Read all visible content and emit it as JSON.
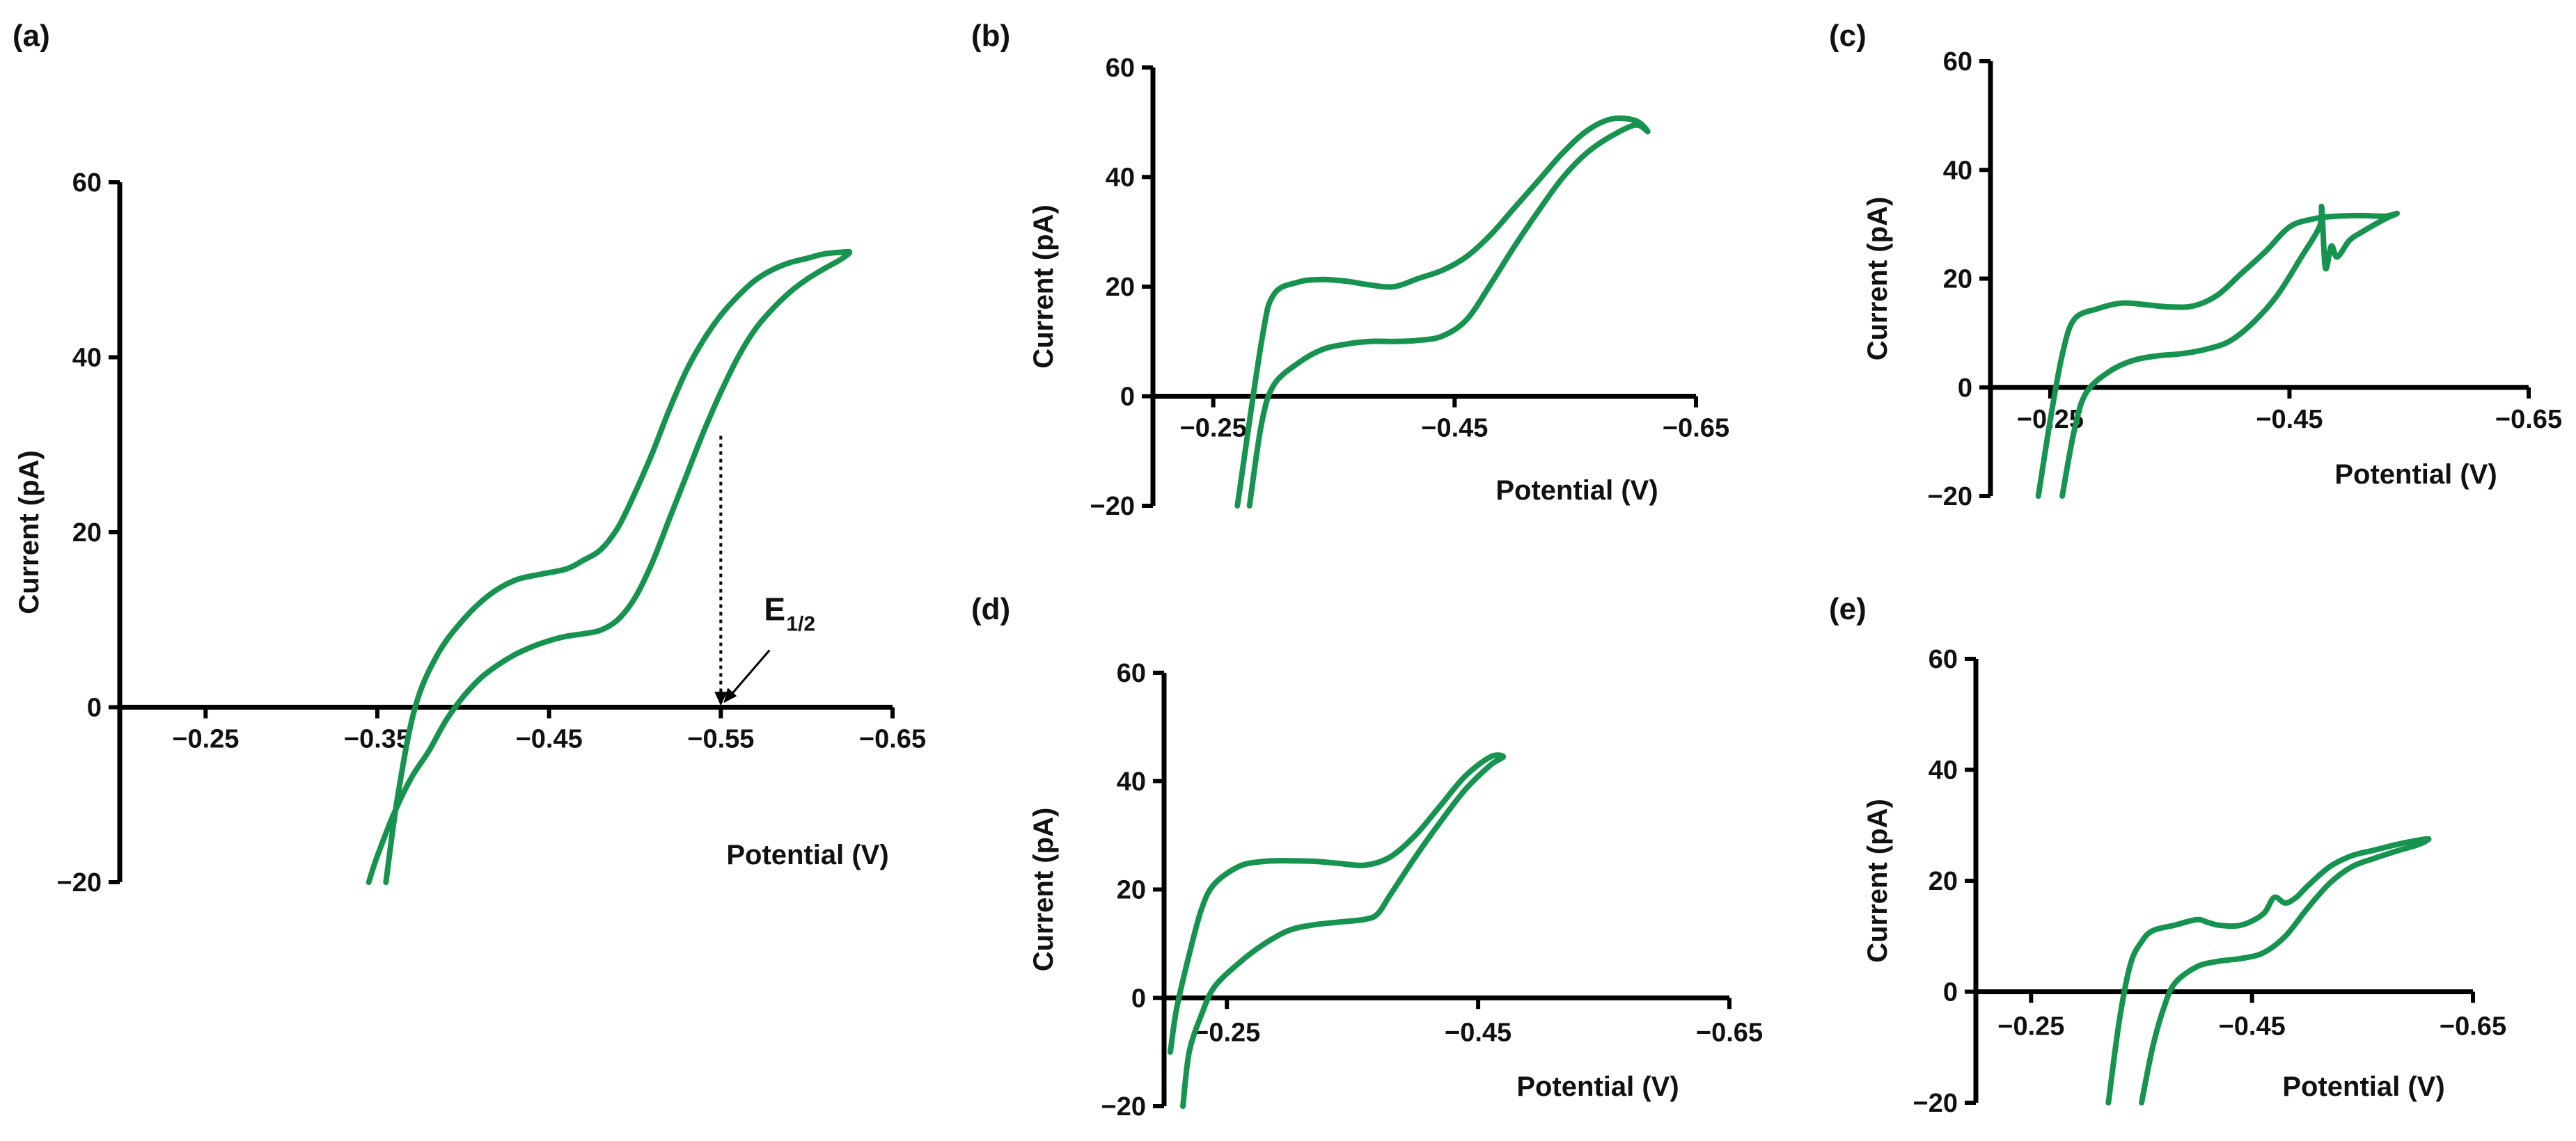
{
  "colors": {
    "curve": "#16944f",
    "axis": "#000000",
    "text": "#111111"
  },
  "chart_data": [
    {
      "type": "line",
      "panel": "(a)",
      "xlabel": "Potential (V)",
      "ylabel": "Current (pA)",
      "xlim": [
        -0.2,
        -0.65
      ],
      "ylim": [
        -20,
        60
      ],
      "xticks": [
        -0.25,
        -0.35,
        -0.45,
        -0.55,
        -0.65
      ],
      "xtick_labels": [
        "−0.25",
        "−0.35",
        "−0.45",
        "−0.55",
        "−0.65"
      ],
      "yticks": [
        -20,
        0,
        20,
        40,
        60
      ],
      "ytick_labels": [
        "−20",
        "0",
        "20",
        "40",
        "60"
      ],
      "annotation": {
        "main": "E",
        "sub": "1/2",
        "x": -0.55,
        "y_top": 31
      },
      "series": [
        {
          "name": "cyclic voltammogram",
          "x": [
            -0.355,
            -0.362,
            -0.372,
            -0.385,
            -0.4,
            -0.415,
            -0.43,
            -0.445,
            -0.46,
            -0.47,
            -0.48,
            -0.49,
            -0.5,
            -0.51,
            -0.52,
            -0.53,
            -0.54,
            -0.55,
            -0.56,
            -0.57,
            -0.58,
            -0.59,
            -0.6,
            -0.61,
            -0.62,
            -0.625,
            -0.62,
            -0.61,
            -0.6,
            -0.59,
            -0.58,
            -0.57,
            -0.56,
            -0.55,
            -0.54,
            -0.53,
            -0.52,
            -0.51,
            -0.5,
            -0.49,
            -0.48,
            -0.47,
            -0.46,
            -0.45,
            -0.44,
            -0.43,
            -0.42,
            -0.41,
            -0.4,
            -0.39,
            -0.38,
            -0.37,
            -0.36,
            -0.35,
            -0.345
          ],
          "y": [
            -20,
            -10,
            0,
            6,
            10,
            12.8,
            14.5,
            15.2,
            15.8,
            16.8,
            18,
            20.5,
            24.5,
            29,
            34,
            38.5,
            42,
            44.8,
            47,
            48.8,
            50,
            50.8,
            51.3,
            51.8,
            52,
            52,
            51.2,
            50.1,
            48.9,
            47.4,
            45.5,
            43.2,
            40,
            36,
            31.5,
            26.5,
            21.5,
            16.5,
            12.5,
            10,
            8.8,
            8.4,
            8.1,
            7.6,
            6.9,
            6,
            4.8,
            3.3,
            1.2,
            -1.5,
            -5,
            -8,
            -12,
            -17,
            -20
          ]
        }
      ]
    },
    {
      "type": "line",
      "panel": "(b)",
      "xlabel": "Potential (V)",
      "ylabel": "Current (pA)",
      "xlim": [
        -0.2,
        -0.65
      ],
      "ylim": [
        -20,
        60
      ],
      "xticks": [
        -0.25,
        -0.45,
        -0.65
      ],
      "xtick_labels": [
        "−0.25",
        "−0.45",
        "−0.65"
      ],
      "yticks": [
        -20,
        0,
        20,
        40,
        60
      ],
      "ytick_labels": [
        "−20",
        "0",
        "20",
        "40",
        "60"
      ],
      "series": [
        {
          "name": "cyclic voltammogram",
          "x": [
            -0.28,
            -0.29,
            -0.3,
            -0.32,
            -0.34,
            -0.36,
            -0.38,
            -0.4,
            -0.42,
            -0.44,
            -0.46,
            -0.48,
            -0.5,
            -0.52,
            -0.54,
            -0.56,
            -0.58,
            -0.6,
            -0.61,
            -0.6,
            -0.58,
            -0.56,
            -0.54,
            -0.52,
            -0.5,
            -0.48,
            -0.46,
            -0.44,
            -0.42,
            -0.4,
            -0.38,
            -0.36,
            -0.34,
            -0.32,
            -0.3,
            -0.29,
            -0.27
          ],
          "y": [
            -20,
            -5,
            2,
            6,
            8.5,
            9.5,
            10,
            10,
            10.2,
            11,
            14,
            20.5,
            27.5,
            34,
            40,
            44.5,
            47.5,
            49.5,
            48.3,
            50.3,
            50.6,
            48.5,
            44.5,
            39.5,
            34.5,
            29.5,
            25.5,
            23,
            21.5,
            20,
            20.3,
            21,
            21.3,
            20.8,
            18.5,
            10,
            -20
          ]
        }
      ]
    },
    {
      "type": "line",
      "panel": "(c)",
      "xlabel": "Potential (V)",
      "ylabel": "Current (pA)",
      "xlim": [
        -0.2,
        -0.65
      ],
      "ylim": [
        -20,
        60
      ],
      "xticks": [
        -0.25,
        -0.45,
        -0.65
      ],
      "xtick_labels": [
        "−0.25",
        "−0.45",
        "−0.65"
      ],
      "yticks": [
        -20,
        0,
        20,
        40,
        60
      ],
      "ytick_labels": [
        "−20",
        "0",
        "20",
        "40",
        "60"
      ],
      "series": [
        {
          "name": "cyclic voltammogram",
          "x": [
            -0.26,
            -0.27,
            -0.28,
            -0.3,
            -0.32,
            -0.34,
            -0.36,
            -0.38,
            -0.4,
            -0.42,
            -0.44,
            -0.46,
            -0.475,
            -0.477,
            -0.48,
            -0.485,
            -0.49,
            -0.5,
            -0.51,
            -0.53,
            -0.54,
            -0.53,
            -0.51,
            -0.49,
            -0.47,
            -0.45,
            -0.43,
            -0.41,
            -0.39,
            -0.37,
            -0.35,
            -0.33,
            -0.31,
            -0.29,
            -0.27,
            -0.26,
            -0.25,
            -0.24
          ],
          "y": [
            -20,
            -8,
            -1,
            3,
            5,
            5.8,
            6.2,
            7,
            8.5,
            12,
            17,
            24,
            29.5,
            33,
            22,
            26,
            24,
            27,
            28.5,
            31,
            32,
            31.5,
            31.6,
            31.5,
            31,
            29.5,
            25,
            21,
            17,
            15,
            14.8,
            15.2,
            15.5,
            14.5,
            12.5,
            6,
            -6,
            -20
          ]
        }
      ]
    },
    {
      "type": "line",
      "panel": "(d)",
      "xlabel": "Potential (V)",
      "ylabel": "Current (pA)",
      "xlim": [
        -0.2,
        -0.65
      ],
      "ylim": [
        -20,
        60
      ],
      "xticks": [
        -0.25,
        -0.45,
        -0.65
      ],
      "xtick_labels": [
        "−0.25",
        "−0.45",
        "−0.65"
      ],
      "yticks": [
        -20,
        0,
        20,
        40,
        60
      ],
      "ytick_labels": [
        "−20",
        "0",
        "20",
        "40",
        "60"
      ],
      "series": [
        {
          "name": "cyclic voltammogram",
          "x": [
            -0.215,
            -0.22,
            -0.23,
            -0.24,
            -0.26,
            -0.28,
            -0.3,
            -0.32,
            -0.34,
            -0.36,
            -0.37,
            -0.38,
            -0.4,
            -0.42,
            -0.44,
            -0.46,
            -0.47,
            -0.46,
            -0.44,
            -0.42,
            -0.4,
            -0.38,
            -0.36,
            -0.34,
            -0.32,
            -0.3,
            -0.28,
            -0.26,
            -0.24,
            -0.23,
            -0.22,
            -0.21,
            -0.205
          ],
          "y": [
            -20,
            -10,
            -3,
            2,
            6.5,
            10,
            12.5,
            13.5,
            14,
            14.5,
            15.5,
            19,
            26,
            32.5,
            38.5,
            43,
            44.5,
            44.5,
            41,
            35.5,
            30,
            26,
            24.5,
            24.8,
            25.2,
            25.3,
            25.2,
            24.3,
            21,
            16.5,
            8,
            -2,
            -10
          ]
        }
      ]
    },
    {
      "type": "line",
      "panel": "(e)",
      "xlabel": "Potential (V)",
      "ylabel": "Current (pA)",
      "xlim": [
        -0.2,
        -0.65
      ],
      "ylim": [
        -20,
        60
      ],
      "xticks": [
        -0.25,
        -0.45,
        -0.65
      ],
      "xtick_labels": [
        "−0.25",
        "−0.45",
        "−0.65"
      ],
      "yticks": [
        -20,
        0,
        20,
        40,
        60
      ],
      "ytick_labels": [
        "−20",
        "0",
        "20",
        "40",
        "60"
      ],
      "series": [
        {
          "name": "cyclic voltammogram",
          "x": [
            -0.35,
            -0.36,
            -0.37,
            -0.38,
            -0.4,
            -0.42,
            -0.44,
            -0.46,
            -0.48,
            -0.5,
            -0.52,
            -0.54,
            -0.56,
            -0.58,
            -0.6,
            -0.61,
            -0.6,
            -0.58,
            -0.56,
            -0.54,
            -0.52,
            -0.5,
            -0.49,
            -0.48,
            -0.47,
            -0.46,
            -0.44,
            -0.42,
            -0.41,
            -0.4,
            -0.38,
            -0.36,
            -0.35,
            -0.34,
            -0.33,
            -0.32
          ],
          "y": [
            -20,
            -10,
            -3,
            1.5,
            4.5,
            5.5,
            6,
            7,
            10,
            15,
            19.5,
            22.5,
            24,
            25.3,
            26.5,
            27.5,
            27.3,
            26.5,
            25.5,
            24.5,
            22.5,
            19,
            17,
            16,
            17,
            14,
            12,
            12,
            12.5,
            13,
            12,
            11,
            9,
            5,
            -5,
            -20
          ]
        }
      ]
    }
  ]
}
